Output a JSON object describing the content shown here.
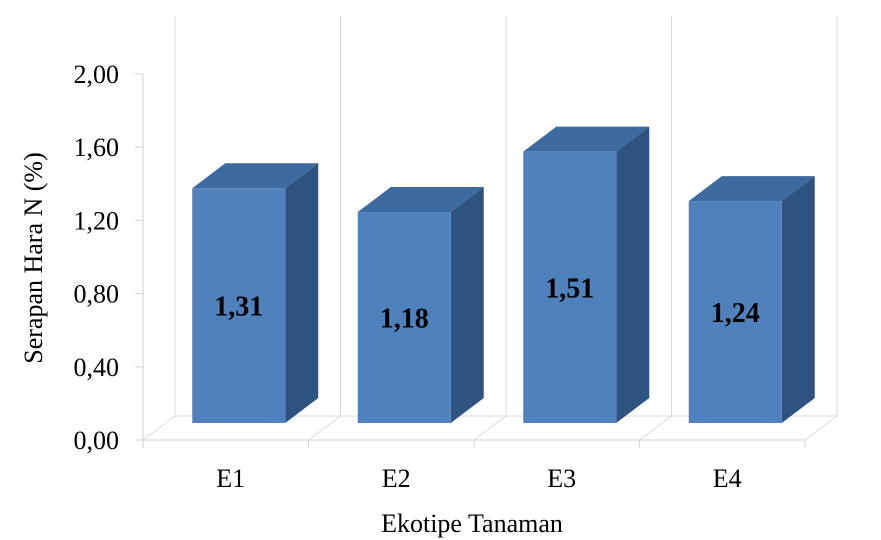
{
  "chart_data": {
    "type": "bar",
    "categories": [
      "E1",
      "E2",
      "E3",
      "E4"
    ],
    "values": [
      1.31,
      1.18,
      1.51,
      1.24
    ],
    "data_labels": [
      "1,31",
      "1,18",
      "1,51",
      "1,24"
    ],
    "title": "",
    "xlabel": "Ekotipe Tanaman",
    "ylabel": "Serapan Hara N  (%)",
    "ylim": [
      0,
      2
    ],
    "yticks": [
      "0,00",
      "0,40",
      "0,80",
      "1,20",
      "1,60",
      "2,00"
    ],
    "grid": true,
    "legend": "none",
    "colors": {
      "front": "#4f81bd",
      "top": "#3d6a9f",
      "side": "#2f5380",
      "grid": "#d9d9d9"
    }
  }
}
